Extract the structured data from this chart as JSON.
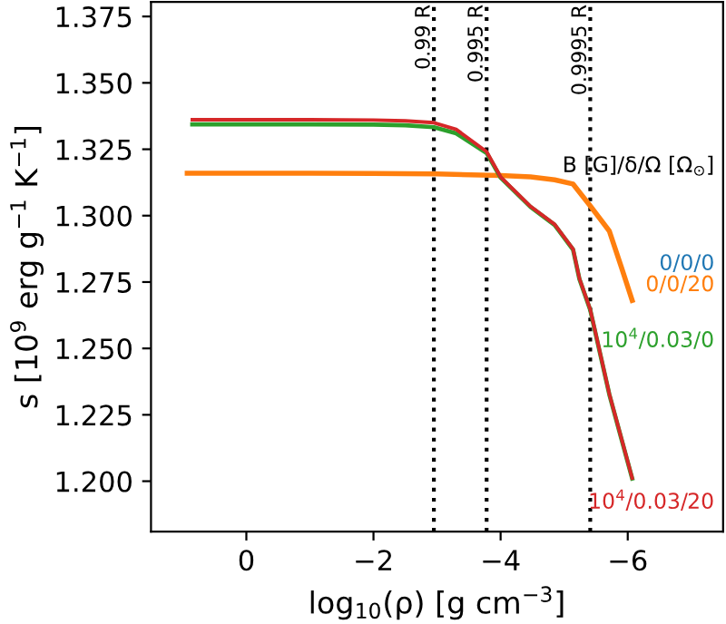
{
  "chart_data": {
    "type": "line",
    "xlabel": "log$_{10}$(ρ) [g cm$^{−3}$]",
    "ylabel": "s [10$^{9}$ erg g$^{−1}$ K$^{−1}$]",
    "legend_title": "B [G]/δ/Ω [Ω$_{⊙}$]",
    "x": [
      0.85,
      0,
      -1,
      -2,
      -2.5,
      -2.95,
      -3.3,
      -3.78,
      -4.0,
      -4.47,
      -4.85,
      -5.14,
      -5.24,
      -5.41,
      -5.71,
      -6.07
    ],
    "series": [
      {
        "name": "0/0/0",
        "color": "#1f77b4",
        "values": [
          null,
          null,
          null,
          null,
          null,
          null,
          null,
          null,
          null,
          null,
          null,
          null,
          null,
          null,
          null,
          null
        ]
      },
      {
        "name": "0/0/20",
        "color": "#ff7f0e",
        "x": [
          0.93,
          0,
          -1,
          -2,
          -3,
          -4.0,
          -4.47,
          -4.85,
          -5.14,
          -5.41,
          -5.71,
          -5.9,
          -6.07
        ],
        "values": [
          1.316,
          1.316,
          1.316,
          1.3159,
          1.3157,
          1.3151,
          1.3146,
          1.3135,
          1.3119,
          1.3037,
          1.2942,
          1.2806,
          1.2681
        ]
      },
      {
        "name": "10$^{4}$/0.03/0",
        "color": "#2ca02c",
        "values": [
          1.3344,
          1.3344,
          1.3344,
          1.3343,
          1.334,
          1.3333,
          1.331,
          1.3236,
          1.3143,
          1.3033,
          1.2965,
          1.2872,
          1.2761,
          1.2645,
          1.2327,
          1.201
        ]
      },
      {
        "name": "10$^{4}$/0.03/20",
        "color": "#d62728",
        "values": [
          1.3361,
          1.3361,
          1.3361,
          1.336,
          1.3357,
          1.335,
          1.3325,
          1.3241,
          1.3146,
          1.3035,
          1.2967,
          1.2874,
          1.2763,
          1.2647,
          1.2329,
          1.2012
        ]
      }
    ],
    "xlim": [
      1.5,
      -7.5
    ],
    "xticks": [
      0,
      {
        "value": -2,
        "label": "−2"
      },
      {
        "value": -4,
        "label": "−4"
      },
      {
        "value": -6,
        "label": "−6"
      }
    ],
    "ylim": [
      1.181,
      1.3805
    ],
    "yticks": [
      {
        "value": 1.2,
        "label": "1.200"
      },
      {
        "value": 1.225,
        "label": "1.225"
      },
      {
        "value": 1.25,
        "label": "1.250"
      },
      {
        "value": 1.275,
        "label": "1.275"
      },
      {
        "value": 1.3,
        "label": "1.300"
      },
      {
        "value": 1.325,
        "label": "1.325"
      },
      {
        "value": 1.35,
        "label": "1.350"
      },
      {
        "value": 1.375,
        "label": "1.375"
      }
    ],
    "ref_lines": [
      {
        "axis": "x",
        "value": -2.95,
        "label": "0.99 R",
        "color": "#000000",
        "line_style": "dotted"
      },
      {
        "axis": "x",
        "value": -3.78,
        "label": "0.995 R",
        "color": "#000000",
        "line_style": "dotted"
      },
      {
        "axis": "x",
        "value": -5.41,
        "label": "0.9995 R",
        "color": "#000000",
        "line_style": "dotted"
      }
    ],
    "grid": false,
    "legend": "right"
  }
}
